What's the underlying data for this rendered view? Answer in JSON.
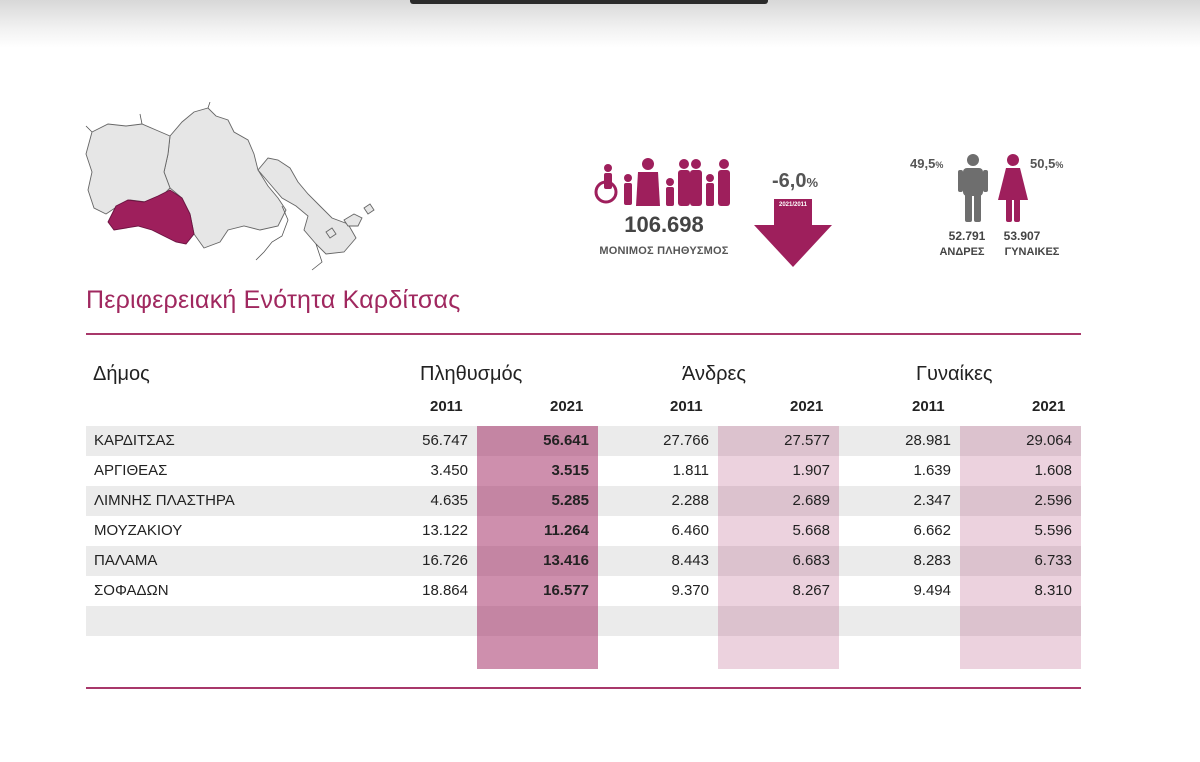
{
  "region_title": "Περιφερειακή Ενότητα Καρδίτσας",
  "infographic": {
    "total_population": "106.698",
    "total_label": "ΜΟΝΙΜΟΣ ΠΛΗΘΥΣΜΟΣ",
    "change_value": "-6,0",
    "change_unit": "%",
    "change_period": "2021/2011",
    "men_percent": "49,5",
    "women_percent": "50,5",
    "percent_unit": "%",
    "men_count": "52.791",
    "women_count": "53.907",
    "men_label": "ΑΝΔΡΕΣ",
    "women_label": "ΓΥΝΑΙΚΕΣ",
    "accent_color": "#9e1f5c"
  },
  "table": {
    "col_municipality": "Δήμος",
    "col_population": "Πληθυσμός",
    "col_men": "Άνδρες",
    "col_women": "Γυναίκες",
    "year_2011": "2011",
    "year_2021": "2021",
    "rows": [
      {
        "name": "ΚΑΡΔΙΤΣΑΣ",
        "pop2011": "56.747",
        "pop2021": "56.641",
        "men2011": "27.766",
        "men2021": "27.577",
        "women2011": "28.981",
        "women2021": "29.064"
      },
      {
        "name": "ΑΡΓΙΘΕΑΣ",
        "pop2011": "3.450",
        "pop2021": "3.515",
        "men2011": "1.811",
        "men2021": "1.907",
        "women2011": "1.639",
        "women2021": "1.608"
      },
      {
        "name": "ΛΙΜΝΗΣ ΠΛΑΣΤΗΡΑ",
        "pop2011": "4.635",
        "pop2021": "5.285",
        "men2011": "2.288",
        "men2021": "2.689",
        "women2011": "2.347",
        "women2021": "2.596"
      },
      {
        "name": "ΜΟΥΖΑΚΙΟΥ",
        "pop2011": "13.122",
        "pop2021": "11.264",
        "men2011": "6.460",
        "men2021": "5.668",
        "women2011": "6.662",
        "women2021": "5.596"
      },
      {
        "name": "ΠΑΛΑΜΑ",
        "pop2011": "16.726",
        "pop2021": "13.416",
        "men2011": "8.443",
        "men2021": "6.683",
        "women2011": "8.283",
        "women2021": "6.733"
      },
      {
        "name": "ΣΟΦΑΔΩΝ",
        "pop2011": "18.864",
        "pop2021": "16.577",
        "men2011": "9.370",
        "men2021": "8.267",
        "women2011": "9.494",
        "women2021": "8.310"
      }
    ]
  }
}
